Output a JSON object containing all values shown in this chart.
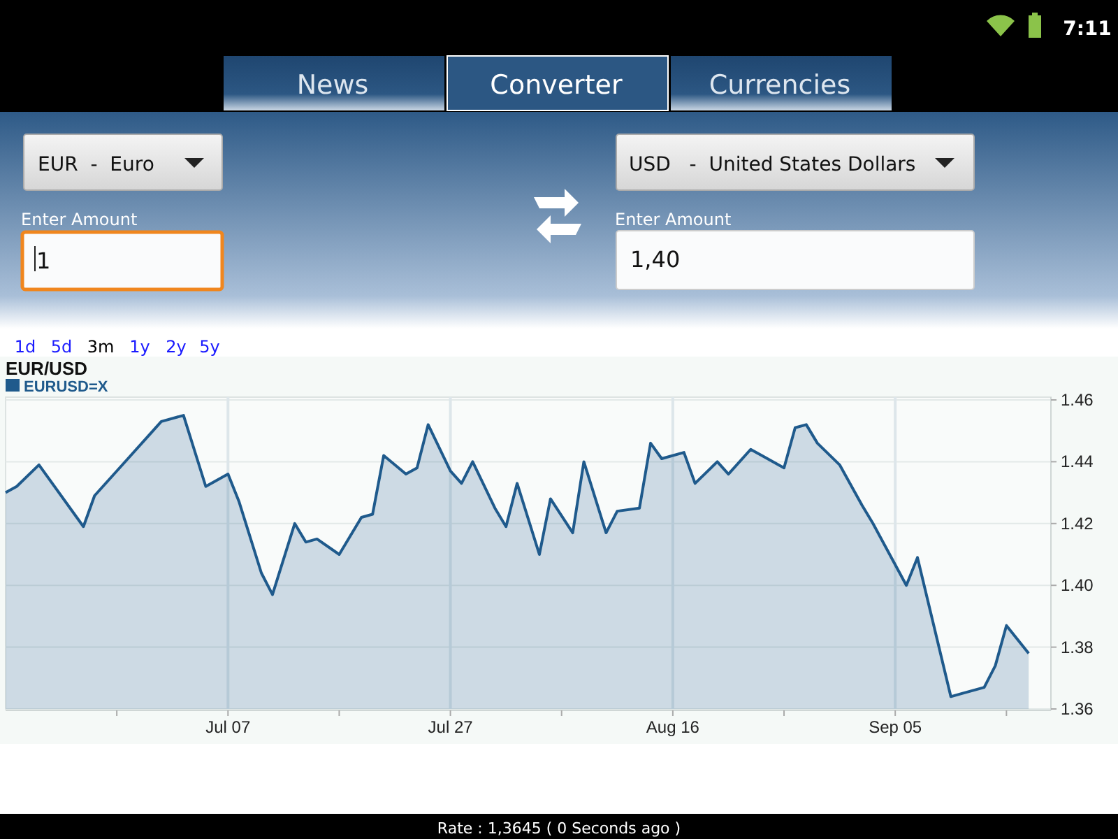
{
  "chart_data": [
    {
      "type": "other",
      "annotations": [
        "7:11",
        "News",
        "Converter",
        "Currencies",
        "EUR  -  Euro",
        "USD   -  United States Dollars",
        "Enter Amount",
        "1",
        "Enter Amount",
        "1,40",
        "1d",
        "5d",
        "3m",
        "1y",
        "2y",
        "5y",
        "Rate : 1,3645 ( 0 Seconds ago )"
      ]
    },
    {
      "type": "area",
      "title": "EUR/USD",
      "legend": "top left",
      "grid": true,
      "xlim": [
        "--06-17",
        "--09-19"
      ],
      "ylim": [
        1.36,
        1.46
      ],
      "xticks": [
        {
          "value": "--06-27",
          "label": null
        },
        {
          "value": "--07-07",
          "label": "Jul 07"
        },
        {
          "value": "--07-17",
          "label": null
        },
        {
          "value": "--07-27",
          "label": "Jul 27"
        },
        {
          "value": "--08-06",
          "label": null
        },
        {
          "value": "--08-16",
          "label": "Aug 16"
        },
        {
          "value": "--08-26",
          "label": null
        },
        {
          "value": "--09-05",
          "label": "Sep 05"
        },
        {
          "value": "--09-15",
          "label": null
        }
      ],
      "yticks": [
        1.36,
        1.38,
        {
          "value": 1.4,
          "label": "1.40"
        },
        1.42,
        1.44,
        1.46
      ],
      "series": [
        {
          "name": "EURUSD=X",
          "color": "#1f5a8c",
          "x": [
            "--06-17",
            "--06-18",
            "--06-20",
            "--06-24",
            "--06-25",
            "--06-28",
            "--06-30",
            "--07-01",
            "--07-03",
            "--07-05",
            "--07-07",
            "--07-08",
            "--07-10",
            "--07-11",
            "--07-13",
            "--07-14",
            "--07-15",
            "--07-17",
            "--07-18",
            "--07-19",
            "--07-20",
            "--07-21",
            "--07-23",
            "--07-24",
            "--07-25",
            "--07-27",
            "--07-28",
            "--07-29",
            "--07-31",
            "--08-01",
            "--08-02",
            "--08-04",
            "--08-05",
            "--08-07",
            "--08-08",
            "--08-10",
            "--08-11",
            "--08-13",
            "--08-14",
            "--08-15",
            "--08-17",
            "--08-18",
            "--08-20",
            "--08-21",
            "--08-23",
            "--08-24",
            "--08-26",
            "--08-27",
            "--08-28",
            "--08-29",
            "--08-31",
            "--09-02",
            "--09-03",
            "--09-06",
            "--09-07",
            "--09-10",
            "--09-11",
            "--09-13",
            "--09-14",
            "--09-15",
            "--09-17"
          ],
          "values": [
            1.43,
            1.432,
            1.439,
            1.419,
            1.429,
            1.441,
            1.449,
            1.453,
            1.455,
            1.432,
            1.436,
            1.427,
            1.404,
            1.397,
            1.42,
            1.414,
            1.415,
            1.41,
            1.416,
            1.422,
            1.423,
            1.442,
            1.436,
            1.438,
            1.452,
            1.437,
            1.433,
            1.44,
            1.425,
            1.419,
            1.433,
            1.41,
            1.428,
            1.417,
            1.44,
            1.417,
            1.424,
            1.425,
            1.446,
            1.441,
            1.443,
            1.433,
            1.44,
            1.436,
            1.444,
            1.442,
            1.438,
            1.451,
            1.452,
            1.446,
            1.439,
            1.426,
            1.42,
            1.4,
            1.409,
            1.364,
            1.365,
            1.367,
            1.374,
            1.387,
            1.378
          ]
        }
      ]
    }
  ]
}
